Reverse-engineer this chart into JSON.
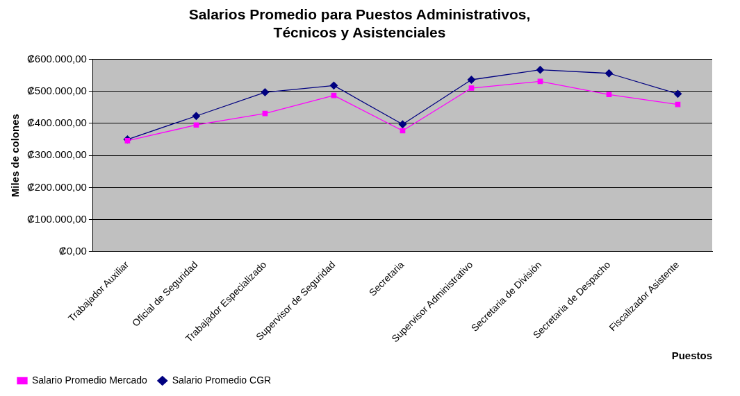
{
  "chart_data": {
    "type": "line",
    "title": [
      "Salarios Promedio para Puestos Administrativos,",
      "Técnicos y Asistenciales"
    ],
    "xlabel": "Puestos",
    "ylabel": "Miles de colones",
    "categories": [
      "Trabajador Auxiliar",
      "Oficial de Seguridad",
      "Trabajador Especializado",
      "Supervisor de Seguridad",
      "Secretaria",
      "Supervisor Administrativo",
      "Secretaria de División",
      "Secretaria de Despacho",
      "Fiscalizador Asistente"
    ],
    "series": [
      {
        "name": "Salario Promedio CGR",
        "color": "#000080",
        "marker": "diamond",
        "values": [
          350000,
          423000,
          497000,
          518000,
          397000,
          536000,
          567000,
          556000,
          492000
        ]
      },
      {
        "name": "Salario Promedio Mercado",
        "color": "#ff00ff",
        "marker": "square",
        "values": [
          346000,
          395000,
          431000,
          487000,
          377000,
          510000,
          531000,
          490000,
          459000
        ]
      }
    ],
    "ylim": [
      0,
      600000
    ],
    "yticks": [
      {
        "value": 0,
        "label": "₡0,00"
      },
      {
        "value": 100000,
        "label": "₡100.000,00"
      },
      {
        "value": 200000,
        "label": "₡200.000,00"
      },
      {
        "value": 300000,
        "label": "₡300.000,00"
      },
      {
        "value": 400000,
        "label": "₡400.000,00"
      },
      {
        "value": 500000,
        "label": "₡500.000,00"
      },
      {
        "value": 600000,
        "label": "₡600.000,00"
      }
    ],
    "grid": "y",
    "legend": "bottom left"
  }
}
